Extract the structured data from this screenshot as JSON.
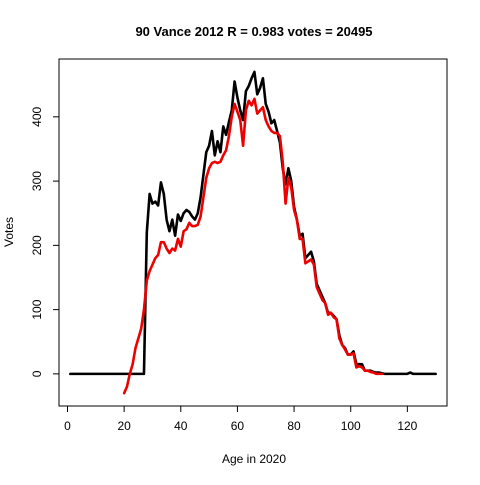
{
  "chart_data": {
    "type": "line",
    "title": "90 Vance 2012 R = 0.983 votes = 20495",
    "xlabel": "Age in 2020",
    "ylabel": "Votes",
    "xlim": [
      -3,
      134
    ],
    "ylim": [
      -50,
      490
    ],
    "x_ticks": [
      0,
      20,
      40,
      60,
      80,
      100,
      120
    ],
    "x_tick_labels": [
      "0",
      "20",
      "40",
      "60",
      "80",
      "100",
      "120"
    ],
    "y_ticks": [
      0,
      100,
      200,
      300,
      400
    ],
    "y_tick_labels": [
      "0",
      "100",
      "200",
      "300",
      "400"
    ],
    "grid": false,
    "legend": "none",
    "series": [
      {
        "color": "#000000",
        "points": [
          [
            1,
            0
          ],
          [
            5,
            0
          ],
          [
            10,
            0
          ],
          [
            15,
            0
          ],
          [
            20,
            0
          ],
          [
            25,
            0
          ],
          [
            27,
            0
          ],
          [
            28,
            220
          ],
          [
            29,
            280
          ],
          [
            30,
            265
          ],
          [
            31,
            268
          ],
          [
            32,
            262
          ],
          [
            33,
            298
          ],
          [
            34,
            280
          ],
          [
            35,
            240
          ],
          [
            36,
            222
          ],
          [
            37,
            240
          ],
          [
            38,
            215
          ],
          [
            39,
            248
          ],
          [
            40,
            238
          ],
          [
            41,
            250
          ],
          [
            42,
            255
          ],
          [
            43,
            252
          ],
          [
            44,
            245
          ],
          [
            45,
            240
          ],
          [
            46,
            250
          ],
          [
            47,
            275
          ],
          [
            48,
            310
          ],
          [
            49,
            345
          ],
          [
            50,
            355
          ],
          [
            51,
            378
          ],
          [
            52,
            340
          ],
          [
            53,
            362
          ],
          [
            54,
            345
          ],
          [
            55,
            385
          ],
          [
            56,
            372
          ],
          [
            57,
            392
          ],
          [
            58,
            410
          ],
          [
            59,
            455
          ],
          [
            60,
            430
          ],
          [
            61,
            410
          ],
          [
            62,
            395
          ],
          [
            63,
            440
          ],
          [
            64,
            448
          ],
          [
            65,
            460
          ],
          [
            66,
            470
          ],
          [
            67,
            435
          ],
          [
            68,
            445
          ],
          [
            69,
            460
          ],
          [
            70,
            420
          ],
          [
            71,
            408
          ],
          [
            72,
            390
          ],
          [
            73,
            395
          ],
          [
            74,
            378
          ],
          [
            75,
            360
          ],
          [
            76,
            320
          ],
          [
            77,
            295
          ],
          [
            78,
            320
          ],
          [
            79,
            300
          ],
          [
            80,
            260
          ],
          [
            81,
            240
          ],
          [
            82,
            215
          ],
          [
            83,
            218
          ],
          [
            84,
            180
          ],
          [
            85,
            185
          ],
          [
            86,
            190
          ],
          [
            87,
            175
          ],
          [
            88,
            140
          ],
          [
            89,
            130
          ],
          [
            90,
            120
          ],
          [
            91,
            110
          ],
          [
            92,
            95
          ],
          [
            93,
            95
          ],
          [
            94,
            90
          ],
          [
            95,
            85
          ],
          [
            96,
            60
          ],
          [
            97,
            45
          ],
          [
            98,
            40
          ],
          [
            99,
            30
          ],
          [
            100,
            30
          ],
          [
            101,
            35
          ],
          [
            102,
            15
          ],
          [
            103,
            15
          ],
          [
            104,
            15
          ],
          [
            105,
            5
          ],
          [
            106,
            5
          ],
          [
            107,
            5
          ],
          [
            108,
            3
          ],
          [
            109,
            2
          ],
          [
            110,
            2
          ],
          [
            112,
            0
          ],
          [
            115,
            0
          ],
          [
            120,
            0
          ],
          [
            121,
            2
          ],
          [
            122,
            0
          ],
          [
            125,
            0
          ],
          [
            130,
            0
          ]
        ]
      },
      {
        "color": "#ee0000",
        "points": [
          [
            20,
            -30
          ],
          [
            21,
            -20
          ],
          [
            22,
            0
          ],
          [
            23,
            15
          ],
          [
            24,
            40
          ],
          [
            25,
            55
          ],
          [
            26,
            70
          ],
          [
            27,
            100
          ],
          [
            28,
            145
          ],
          [
            29,
            160
          ],
          [
            30,
            170
          ],
          [
            31,
            180
          ],
          [
            32,
            185
          ],
          [
            33,
            205
          ],
          [
            34,
            205
          ],
          [
            35,
            195
          ],
          [
            36,
            188
          ],
          [
            37,
            195
          ],
          [
            38,
            192
          ],
          [
            39,
            210
          ],
          [
            40,
            198
          ],
          [
            41,
            222
          ],
          [
            42,
            225
          ],
          [
            43,
            235
          ],
          [
            44,
            230
          ],
          [
            45,
            230
          ],
          [
            46,
            232
          ],
          [
            47,
            245
          ],
          [
            48,
            275
          ],
          [
            49,
            305
          ],
          [
            50,
            320
          ],
          [
            51,
            328
          ],
          [
            52,
            330
          ],
          [
            53,
            328
          ],
          [
            54,
            330
          ],
          [
            55,
            340
          ],
          [
            56,
            348
          ],
          [
            57,
            370
          ],
          [
            58,
            400
          ],
          [
            59,
            420
          ],
          [
            60,
            408
          ],
          [
            61,
            395
          ],
          [
            62,
            355
          ],
          [
            63,
            410
          ],
          [
            64,
            425
          ],
          [
            65,
            418
          ],
          [
            66,
            428
          ],
          [
            67,
            405
          ],
          [
            68,
            410
          ],
          [
            69,
            415
          ],
          [
            70,
            395
          ],
          [
            71,
            385
          ],
          [
            72,
            378
          ],
          [
            73,
            375
          ],
          [
            74,
            375
          ],
          [
            75,
            370
          ],
          [
            76,
            330
          ],
          [
            77,
            265
          ],
          [
            78,
            305
          ],
          [
            79,
            290
          ],
          [
            80,
            255
          ],
          [
            81,
            240
          ],
          [
            82,
            210
          ],
          [
            83,
            210
          ],
          [
            84,
            172
          ],
          [
            85,
            175
          ],
          [
            86,
            178
          ],
          [
            87,
            170
          ],
          [
            88,
            135
          ],
          [
            89,
            125
          ],
          [
            90,
            115
          ],
          [
            91,
            110
          ],
          [
            92,
            92
          ],
          [
            93,
            95
          ],
          [
            94,
            88
          ],
          [
            95,
            85
          ],
          [
            96,
            55
          ],
          [
            97,
            45
          ],
          [
            98,
            38
          ],
          [
            99,
            30
          ],
          [
            100,
            30
          ],
          [
            101,
            32
          ],
          [
            102,
            10
          ],
          [
            103,
            12
          ],
          [
            104,
            10
          ],
          [
            105,
            5
          ],
          [
            106,
            5
          ],
          [
            107,
            3
          ],
          [
            108,
            2
          ],
          [
            109,
            0
          ],
          [
            110,
            0
          ],
          [
            111,
            0
          ]
        ]
      }
    ]
  }
}
